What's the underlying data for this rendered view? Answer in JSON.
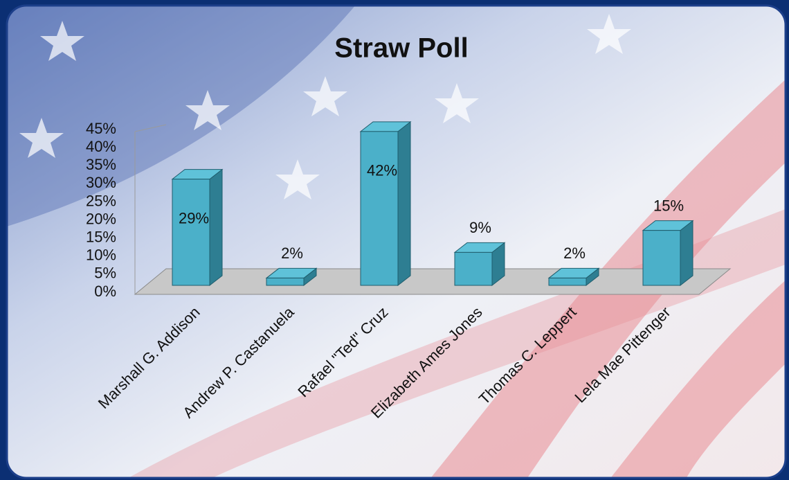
{
  "chart_data": {
    "type": "bar3d",
    "title": "Straw Poll",
    "categories": [
      "Marshall G. Addison",
      "Andrew P. Castanuela",
      "Rafael \"Ted\" Cruz",
      "Elizabeth Ames Jones",
      "Thomas C. Leppert",
      "Lela Mae Pittenger"
    ],
    "values": [
      29,
      2,
      42,
      9,
      2,
      15
    ],
    "value_labels": [
      "29%",
      "2%",
      "42%",
      "9%",
      "2%",
      "15%"
    ],
    "color": "#4bb0c9",
    "ylim": [
      0,
      45
    ],
    "yticks": [
      {
        "value": 0,
        "label": "0%"
      },
      {
        "value": 5,
        "label": "5%"
      },
      {
        "value": 10,
        "label": "10%"
      },
      {
        "value": 15,
        "label": "15%"
      },
      {
        "value": 20,
        "label": "20%"
      },
      {
        "value": 25,
        "label": "25%"
      },
      {
        "value": 30,
        "label": "30%"
      },
      {
        "value": 35,
        "label": "35%"
      },
      {
        "value": 40,
        "label": "40%"
      },
      {
        "value": 45,
        "label": "45%"
      }
    ]
  }
}
